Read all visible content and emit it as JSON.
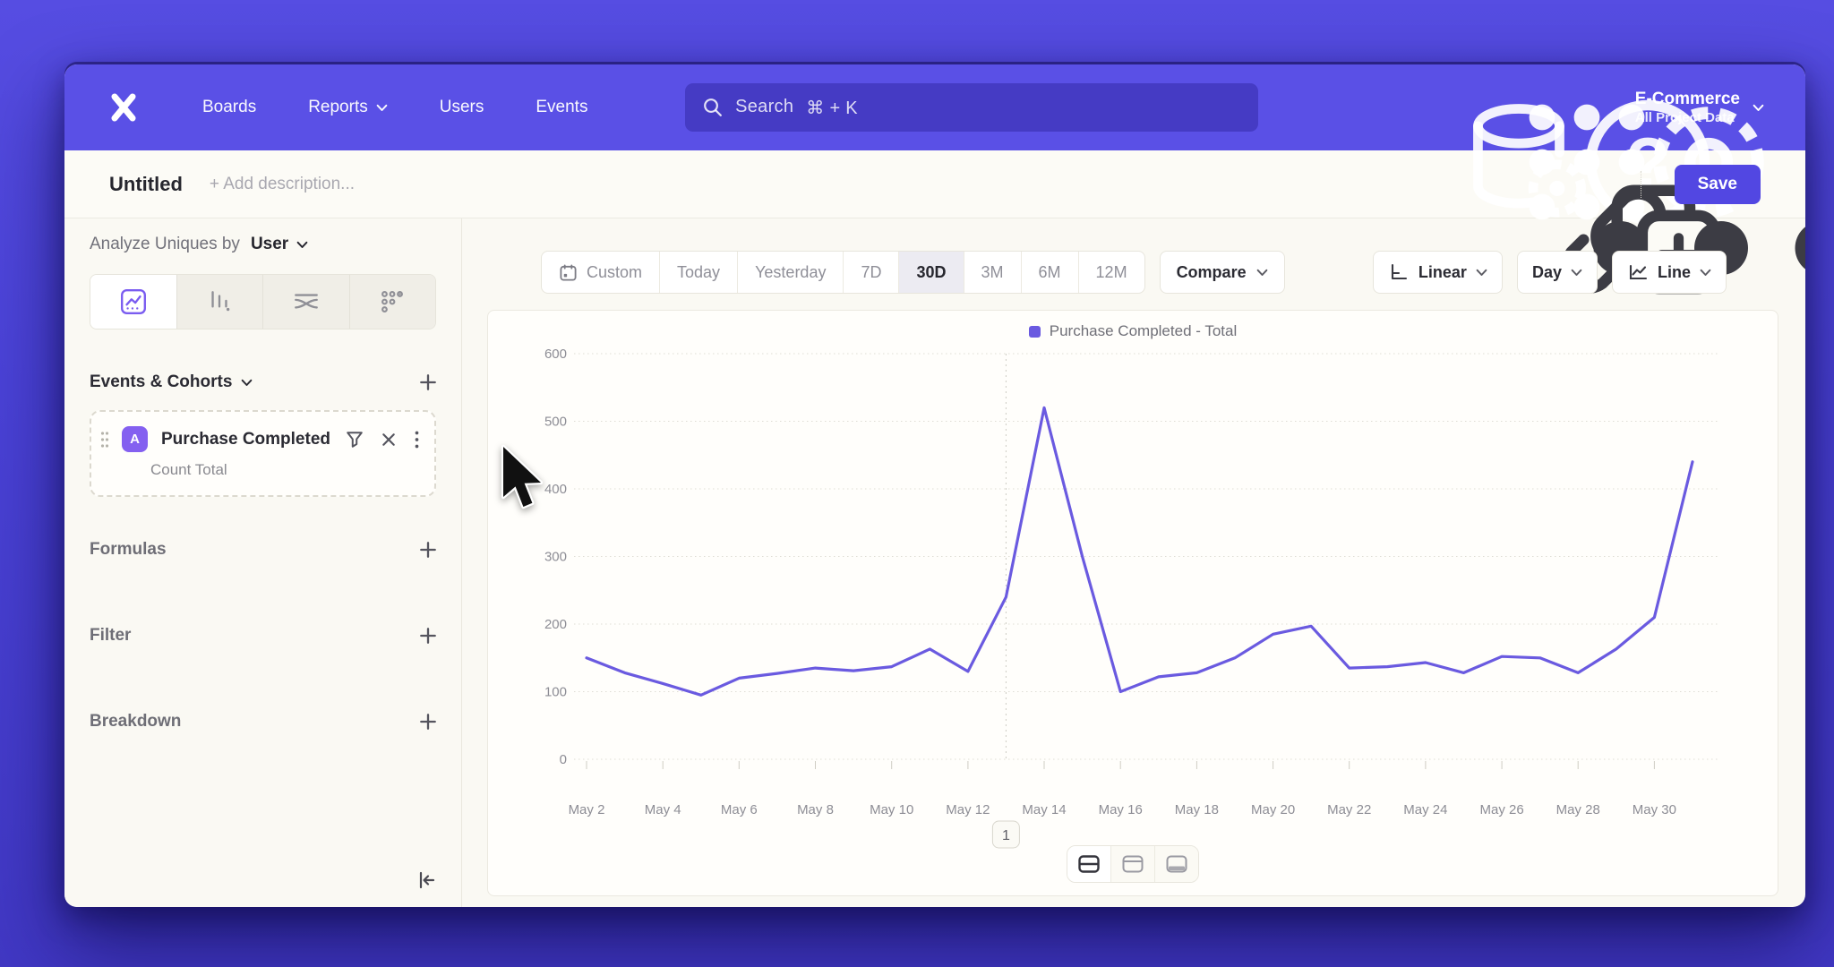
{
  "colors": {
    "accent": "#5a4fe5",
    "save_button": "#5247e2",
    "chart_line": "#6a5ae0",
    "event_badge": "#8460f0"
  },
  "nav": {
    "items": [
      "Boards",
      "Reports",
      "Users",
      "Events"
    ],
    "search_placeholder": "Search",
    "search_shortcut": "⌘ + K",
    "project_name": "E-Commerce",
    "project_subtitle": "All Project Data",
    "icons": [
      "database-gear-icon",
      "apps-grid-icon",
      "help-icon",
      "settings-gear-icon"
    ]
  },
  "header": {
    "title": "Untitled",
    "description_placeholder": "+ Add description...",
    "save_label": "Save",
    "icons": [
      "link-icon",
      "duplicate-icon",
      "more-ellipsis-icon"
    ]
  },
  "sidebar": {
    "analyze_label": "Analyze Uniques by",
    "analyze_value": "User",
    "viz_tabs": [
      "insights-line-tab",
      "funnels-bar-tab",
      "flows-tab",
      "retention-dots-tab"
    ],
    "events_header": "Events & Cohorts",
    "event_card": {
      "badge": "A",
      "title": "Purchase Completed",
      "subtitle": "Count Total"
    },
    "formulas_label": "Formulas",
    "filter_label": "Filter",
    "breakdown_label": "Breakdown"
  },
  "toolbar": {
    "ranges": [
      "Custom",
      "Today",
      "Yesterday",
      "7D",
      "30D",
      "3M",
      "6M",
      "12M"
    ],
    "active_range": "30D",
    "compare_label": "Compare",
    "scale_label": "Linear",
    "interval_label": "Day",
    "chart_type_label": "Line"
  },
  "chart_data": {
    "type": "line",
    "legend": [
      "Purchase Completed - Total"
    ],
    "legend_position": "top-center",
    "grid": "dotted-horizontal",
    "x": [
      "May 2",
      "May 3",
      "May 4",
      "May 5",
      "May 6",
      "May 7",
      "May 8",
      "May 9",
      "May 10",
      "May 11",
      "May 12",
      "May 13",
      "May 14",
      "May 15",
      "May 16",
      "May 17",
      "May 18",
      "May 19",
      "May 20",
      "May 21",
      "May 22",
      "May 23",
      "May 24",
      "May 25",
      "May 26",
      "May 27",
      "May 28",
      "May 29",
      "May 30",
      "May 31"
    ],
    "x_label_every": 2,
    "series": [
      {
        "name": "Purchase Completed - Total",
        "values": [
          150,
          128,
          112,
          95,
          120,
          127,
          135,
          131,
          137,
          163,
          130,
          240,
          520,
          300,
          100,
          122,
          128,
          150,
          185,
          197,
          135,
          137,
          143,
          128,
          152,
          150,
          128,
          163,
          210,
          440
        ]
      }
    ],
    "ylim": [
      0,
      600
    ],
    "yticks": [
      0,
      100,
      200,
      300,
      400,
      500,
      600
    ],
    "line_color": "#6a5ae0",
    "annotation": {
      "index": 11,
      "date": "May 13",
      "label": "1"
    }
  },
  "footer_controls": {
    "layout_toggles": [
      "split-horizontal-icon",
      "panel-top-icon",
      "panel-bottom-icon"
    ],
    "active_toggle": 0
  }
}
